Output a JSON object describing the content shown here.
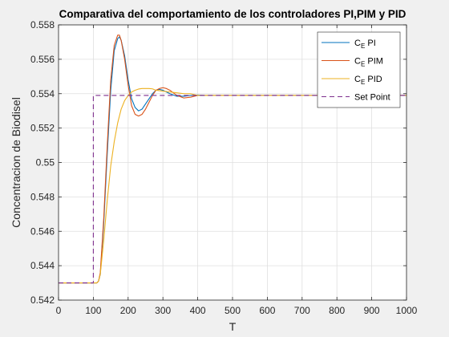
{
  "chart_data": {
    "type": "line",
    "title": "Comparativa del comportamiento de los controladores PI,PIM y PID",
    "xlabel": "T",
    "ylabel": "Concentracion de Biodisel",
    "xlim": [
      0,
      1000
    ],
    "ylim": [
      0.542,
      0.558
    ],
    "xticks": [
      0,
      100,
      200,
      300,
      400,
      500,
      600,
      700,
      800,
      900,
      1000
    ],
    "yticks": [
      0.542,
      0.544,
      0.546,
      0.548,
      0.55,
      0.552,
      0.554,
      0.556,
      0.558
    ],
    "xtick_labels": [
      "0",
      "100",
      "200",
      "300",
      "400",
      "500",
      "600",
      "700",
      "800",
      "900",
      "1000"
    ],
    "ytick_labels": [
      "0.542",
      "0.544",
      "0.546",
      "0.548",
      "0.55",
      "0.552",
      "0.554",
      "0.556",
      "0.558"
    ],
    "grid": true,
    "legend_position": "top-right",
    "series": [
      {
        "name": "C_E PI",
        "legend_main": "C",
        "legend_sub": "E",
        "legend_rest": " PI",
        "color": "#0072bd",
        "dash": "solid",
        "x": [
          0,
          100,
          110,
          115,
          120,
          130,
          140,
          150,
          160,
          170,
          175,
          180,
          190,
          200,
          210,
          220,
          230,
          240,
          250,
          260,
          270,
          280,
          290,
          300,
          310,
          320,
          340,
          360,
          380,
          400,
          420,
          450,
          500,
          1000
        ],
        "y": [
          0.543,
          0.543,
          0.543,
          0.5431,
          0.5435,
          0.5465,
          0.5505,
          0.5542,
          0.5565,
          0.5572,
          0.5573,
          0.5571,
          0.5562,
          0.5548,
          0.5537,
          0.5532,
          0.553,
          0.5531,
          0.5534,
          0.5537,
          0.554,
          0.5542,
          0.55425,
          0.5542,
          0.5541,
          0.554,
          0.55385,
          0.55385,
          0.5539,
          0.55392,
          0.5539,
          0.5539,
          0.5539,
          0.5539
        ]
      },
      {
        "name": "C_E PIM",
        "legend_main": "C",
        "legend_sub": "E",
        "legend_rest": " PIM",
        "color": "#d95319",
        "dash": "solid",
        "x": [
          0,
          100,
          110,
          115,
          120,
          130,
          140,
          150,
          160,
          170,
          175,
          180,
          190,
          200,
          210,
          220,
          230,
          240,
          250,
          260,
          270,
          280,
          290,
          300,
          310,
          320,
          340,
          360,
          380,
          400,
          420,
          450,
          500,
          1000
        ],
        "y": [
          0.543,
          0.543,
          0.543,
          0.5431,
          0.5436,
          0.5468,
          0.551,
          0.5548,
          0.5568,
          0.5574,
          0.5574,
          0.5571,
          0.556,
          0.5545,
          0.5533,
          0.5528,
          0.5527,
          0.5528,
          0.5531,
          0.5535,
          0.5539,
          0.5542,
          0.5543,
          0.55435,
          0.5543,
          0.5542,
          0.5539,
          0.55375,
          0.5538,
          0.5539,
          0.5539,
          0.5539,
          0.5539,
          0.5539
        ]
      },
      {
        "name": "C_E PID",
        "legend_main": "C",
        "legend_sub": "E",
        "legend_rest": " PID",
        "color": "#edb120",
        "dash": "solid",
        "x": [
          0,
          100,
          110,
          115,
          120,
          130,
          140,
          150,
          160,
          170,
          180,
          190,
          200,
          210,
          220,
          230,
          240,
          250,
          260,
          270,
          280,
          300,
          320,
          340,
          360,
          380,
          400,
          450,
          500,
          1000
        ],
        "y": [
          0.543,
          0.543,
          0.543,
          0.5431,
          0.5435,
          0.5455,
          0.5478,
          0.5498,
          0.5512,
          0.5523,
          0.5531,
          0.5536,
          0.5539,
          0.5541,
          0.5542,
          0.55427,
          0.5543,
          0.5543,
          0.5543,
          0.55428,
          0.5542,
          0.55415,
          0.5541,
          0.55405,
          0.554,
          0.554,
          0.5539,
          0.5539,
          0.5539,
          0.5539
        ]
      },
      {
        "name": "Set Point",
        "legend_main": "Set Point",
        "legend_sub": "",
        "legend_rest": "",
        "color": "#7e2f8e",
        "dash": "dashed",
        "x": [
          0,
          100,
          100,
          1000
        ],
        "y": [
          0.543,
          0.543,
          0.5539,
          0.5539
        ]
      }
    ]
  }
}
